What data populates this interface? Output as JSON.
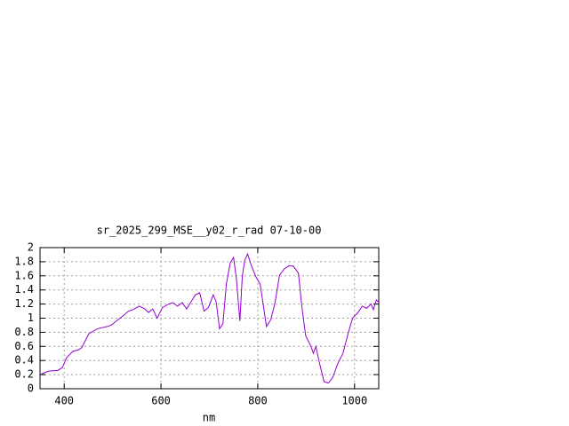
{
  "chart_data": {
    "type": "line",
    "title": "sr_2025_299_MSE__y02_r_rad 07-10-00",
    "xlabel": "nm",
    "x": [
      350,
      368,
      387,
      396,
      405,
      418,
      429,
      436,
      451,
      469,
      488,
      497,
      506,
      521,
      533,
      542,
      555,
      567,
      574,
      583,
      592,
      603,
      616,
      625,
      634,
      644,
      653,
      662,
      671,
      680,
      689,
      698,
      708,
      714,
      721,
      728,
      735,
      743,
      750,
      756,
      763,
      768,
      773,
      779,
      787,
      796,
      805,
      818,
      827,
      836,
      845,
      855,
      864,
      873,
      884,
      891,
      899,
      910,
      915,
      920,
      928,
      937,
      946,
      955,
      965,
      976,
      987,
      996,
      1007,
      1016,
      1025,
      1034,
      1039,
      1045,
      1049
    ],
    "series": [
      {
        "color": "#9400d3",
        "values": [
          0.2,
          0.25,
          0.26,
          0.3,
          0.44,
          0.53,
          0.55,
          0.58,
          0.78,
          0.85,
          0.88,
          0.9,
          0.95,
          1.03,
          1.1,
          1.12,
          1.17,
          1.13,
          1.08,
          1.13,
          1.0,
          1.15,
          1.2,
          1.22,
          1.17,
          1.22,
          1.13,
          1.23,
          1.33,
          1.36,
          1.1,
          1.15,
          1.33,
          1.23,
          0.85,
          0.92,
          1.48,
          1.78,
          1.86,
          1.55,
          0.96,
          1.59,
          1.82,
          1.91,
          1.74,
          1.59,
          1.48,
          0.88,
          0.98,
          1.23,
          1.61,
          1.7,
          1.74,
          1.74,
          1.64,
          1.17,
          0.75,
          0.6,
          0.5,
          0.6,
          0.35,
          0.1,
          0.08,
          0.16,
          0.35,
          0.5,
          0.79,
          1.0,
          1.08,
          1.17,
          1.14,
          1.2,
          1.12,
          1.26,
          1.23
        ]
      }
    ],
    "xlim": [
      350,
      1050
    ],
    "xticks": [
      400,
      600,
      800,
      1000
    ],
    "ylim": [
      0,
      2
    ],
    "yticks": [
      0,
      0.2,
      0.4,
      0.6,
      0.8,
      1,
      1.2,
      1.4,
      1.6,
      1.8,
      2
    ],
    "grid": true
  }
}
